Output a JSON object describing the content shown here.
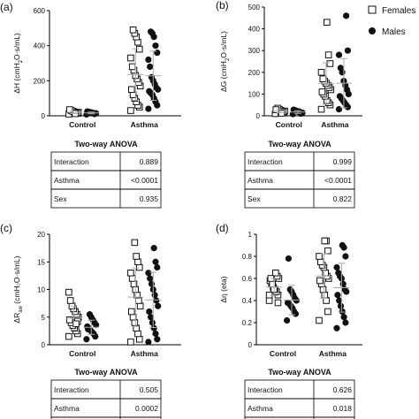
{
  "legend": [
    {
      "name": "Females",
      "marker": "open-square"
    },
    {
      "name": "Males",
      "marker": "filled-circle"
    }
  ],
  "chart_data": [
    {
      "type": "scatter",
      "panel": "(a)",
      "ylabel_html": "ΔH (cmH₂O·s/mL)",
      "ylabel_parts": {
        "pre": "ΔH (cmH",
        "sub": "2",
        "post": "O·s/mL)"
      },
      "ylim": [
        0,
        600
      ],
      "yticks": [
        0,
        200,
        400,
        600
      ],
      "categories": [
        "Control",
        "Asthma"
      ],
      "series": [
        {
          "name": "Females",
          "values": {
            "Control": [
              10,
              14,
              18,
              22,
              26,
              30,
              35,
              20,
              16,
              12
            ],
            "Asthma": [
              30,
              50,
              60,
              80,
              100,
              120,
              150,
              170,
              190,
              210,
              230,
              260,
              280,
              330,
              380,
              420,
              450,
              470,
              490
            ]
          }
        },
        {
          "name": "Males",
          "values": {
            "Control": [
              8,
              12,
              15,
              18,
              20,
              22,
              25,
              14,
              10,
              16,
              19
            ],
            "Asthma": [
              40,
              60,
              80,
              100,
              120,
              130,
              140,
              150,
              160,
              180,
              200,
              220,
              280,
              320,
              360,
              400,
              450,
              470,
              480
            ]
          }
        }
      ],
      "anova": [
        [
          "Interaction",
          "0.889"
        ],
        [
          "Asthma",
          "<0.0001"
        ],
        [
          "Sex",
          "0.935"
        ]
      ]
    },
    {
      "type": "scatter",
      "panel": "(b)",
      "ylabel_parts": {
        "pre": "ΔG (cmH",
        "sub": "2",
        "post": "O·s/mL)"
      },
      "ylim": [
        0,
        500
      ],
      "yticks": [
        0,
        100,
        200,
        300,
        400,
        500
      ],
      "categories": [
        "Control",
        "Asthma"
      ],
      "series": [
        {
          "name": "Females",
          "values": {
            "Control": [
              10,
              15,
              20,
              25,
              30,
              35,
              28,
              22,
              18,
              12
            ],
            "Asthma": [
              30,
              50,
              60,
              70,
              90,
              100,
              110,
              120,
              130,
              140,
              150,
              160,
              170,
              200,
              240,
              280,
              430
            ]
          }
        },
        {
          "name": "Males",
          "values": {
            "Control": [
              8,
              12,
              15,
              18,
              22,
              25,
              28,
              14,
              10,
              20
            ],
            "Asthma": [
              30,
              40,
              50,
              60,
              70,
              80,
              90,
              100,
              120,
              140,
              160,
              200,
              220,
              280,
              300,
              460
            ]
          }
        }
      ],
      "anova": [
        [
          "Interaction",
          "0.999"
        ],
        [
          "Asthma",
          "<0.0001"
        ],
        [
          "Sex",
          "0.822"
        ]
      ]
    },
    {
      "type": "scatter",
      "panel": "(c)",
      "ylabel_parts": {
        "pre": "ΔR",
        "sub": "aw",
        "post": " (cmH₂O·s/mL)"
      },
      "ylim": [
        0,
        20
      ],
      "yticks": [
        0,
        5,
        10,
        15,
        20
      ],
      "categories": [
        "Control",
        "Asthma"
      ],
      "series": [
        {
          "name": "Females",
          "values": {
            "Control": [
              1.5,
              2,
              2.5,
              3,
              3.5,
              4,
              4.5,
              5,
              5.5,
              6,
              6.5,
              7,
              8,
              9.5,
              4.2,
              3.8
            ],
            "Asthma": [
              0.5,
              1,
              2,
              3,
              4,
              5,
              6,
              7,
              8,
              9,
              10,
              11,
              12,
              13,
              14,
              15,
              16,
              18.5
            ]
          }
        },
        {
          "name": "Males",
          "values": {
            "Control": [
              1,
              1.5,
              2,
              2.3,
              2.6,
              3,
              3.3,
              3.6,
              4,
              4.5,
              5,
              5.5,
              2.8
            ],
            "Asthma": [
              0.5,
              1,
              2,
              3,
              4,
              5,
              6,
              7,
              8,
              9,
              10,
              11,
              12,
              13,
              14,
              15,
              17.5
            ]
          }
        }
      ],
      "anova": [
        [
          "Interaction",
          "0.505"
        ],
        [
          "Asthma",
          "0.0002"
        ],
        [
          "Sex",
          ""
        ]
      ]
    },
    {
      "type": "scatter",
      "panel": "(d)",
      "ylabel_parts": {
        "pre": "Δη (eta)",
        "sub": "",
        "post": ""
      },
      "ylim": [
        0,
        1.0
      ],
      "yticks": [
        0,
        0.2,
        0.4,
        0.6,
        0.8,
        1.0
      ],
      "categories": [
        "Control",
        "Asthma"
      ],
      "series": [
        {
          "name": "Females",
          "values": {
            "Control": [
              0.4,
              0.45,
              0.48,
              0.5,
              0.52,
              0.55,
              0.58,
              0.6,
              0.62,
              0.65,
              0.5,
              0.55,
              0.6,
              0.45,
              0.38
            ],
            "Asthma": [
              0.22,
              0.3,
              0.4,
              0.45,
              0.5,
              0.55,
              0.58,
              0.6,
              0.62,
              0.65,
              0.7,
              0.72,
              0.75,
              0.8,
              0.85,
              0.94,
              0.94
            ]
          }
        },
        {
          "name": "Males",
          "values": {
            "Control": [
              0.22,
              0.28,
              0.3,
              0.33,
              0.35,
              0.37,
              0.38,
              0.4,
              0.42,
              0.45,
              0.48,
              0.5,
              0.78
            ],
            "Asthma": [
              0.15,
              0.2,
              0.25,
              0.3,
              0.35,
              0.4,
              0.45,
              0.48,
              0.5,
              0.55,
              0.6,
              0.62,
              0.65,
              0.7,
              0.8,
              0.88,
              0.9
            ]
          }
        }
      ],
      "anova": [
        [
          "Interaction",
          "0.626"
        ],
        [
          "Asthma",
          "0.018"
        ],
        [
          "Sex",
          ""
        ]
      ]
    }
  ],
  "anova_title": "Two-way ANOVA",
  "colors": {
    "marker": "#111111",
    "errorbar": "#aaaaaa"
  }
}
